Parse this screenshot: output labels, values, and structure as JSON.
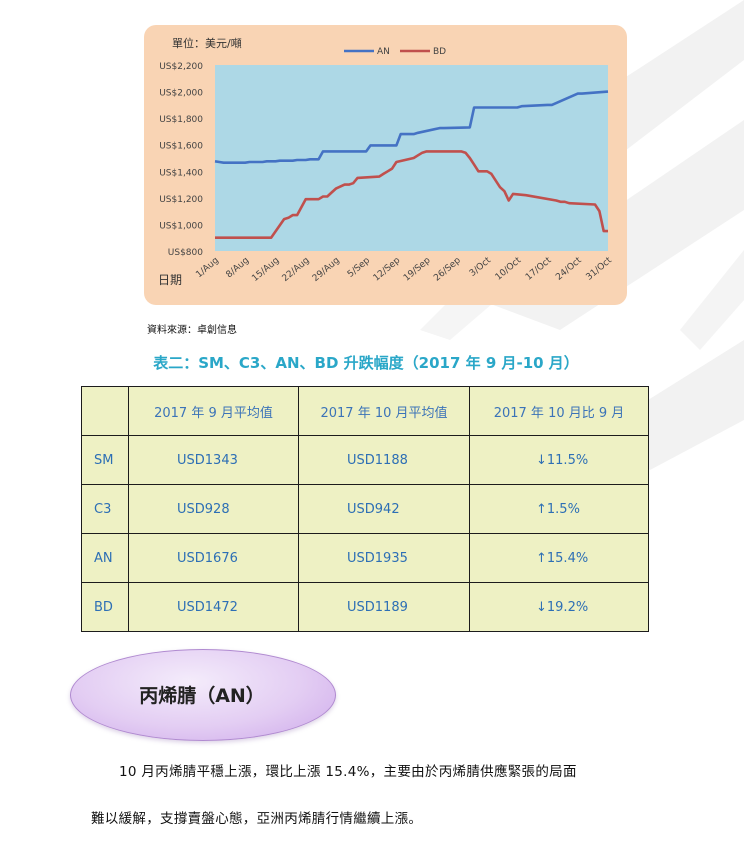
{
  "chart_data": {
    "type": "line",
    "unit_label": "單位：美元/噸",
    "xlabel": "日期",
    "x_ticks": [
      "1/Aug",
      "8/Aug",
      "15/Aug",
      "22/Aug",
      "29/Aug",
      "5/Sep",
      "12/Sep",
      "19/Sep",
      "26/Sep",
      "3/Oct",
      "10/Oct",
      "17/Oct",
      "24/Oct",
      "31/Oct"
    ],
    "y_ticks": [
      "US$800",
      "US$1,000",
      "US$1,200",
      "US$1,400",
      "US$1,600",
      "US$1,800",
      "US$2,000",
      "US$2,200"
    ],
    "ylim": [
      800,
      2200
    ],
    "xlim": [
      0,
      91
    ],
    "legend_position": "top",
    "grid": false,
    "series": [
      {
        "name": "AN",
        "color": "#4472c4",
        "x": [
          0,
          1,
          2,
          7,
          8,
          11,
          12,
          14,
          15,
          18,
          19,
          21,
          22,
          24,
          25,
          26,
          27,
          35,
          36,
          42,
          43,
          45,
          46,
          47,
          52,
          53,
          59,
          60,
          70,
          71,
          77,
          78,
          84,
          85,
          91
        ],
        "y": [
          1475,
          1470,
          1465,
          1465,
          1470,
          1470,
          1475,
          1475,
          1480,
          1480,
          1485,
          1485,
          1490,
          1490,
          1550,
          1550,
          1550,
          1550,
          1595,
          1595,
          1680,
          1680,
          1680,
          1690,
          1725,
          1725,
          1730,
          1880,
          1880,
          1890,
          1900,
          1900,
          1985,
          1985,
          2000
        ]
      },
      {
        "name": "BD",
        "color": "#c0504d",
        "x": [
          0,
          13,
          16,
          17,
          18,
          19,
          21,
          22,
          23,
          24,
          25,
          26,
          27,
          28,
          30,
          31,
          32,
          33,
          38,
          39,
          40,
          41,
          42,
          46,
          47,
          48,
          49,
          50,
          57,
          58,
          59,
          60,
          61,
          63,
          64,
          65,
          66,
          67,
          68,
          69,
          72,
          79,
          80,
          81,
          82,
          88,
          89,
          90,
          91
        ],
        "y": [
          900,
          900,
          1040,
          1050,
          1070,
          1070,
          1190,
          1190,
          1190,
          1190,
          1210,
          1210,
          1240,
          1270,
          1300,
          1300,
          1310,
          1350,
          1360,
          1380,
          1400,
          1420,
          1470,
          1500,
          1520,
          1540,
          1550,
          1550,
          1550,
          1540,
          1500,
          1450,
          1400,
          1400,
          1380,
          1330,
          1280,
          1250,
          1180,
          1230,
          1220,
          1180,
          1170,
          1170,
          1160,
          1150,
          1100,
          950,
          950
        ]
      }
    ]
  },
  "source_note": "資料來源：卓創信息",
  "table_title": "表二：SM、C3、AN、BD 升跌幅度（2017 年 9 月-10 月）",
  "table": {
    "headers": [
      "",
      "2017 年 9 月平均值",
      "2017 年 10 月平均值",
      "2017 年 10 月比 9 月"
    ],
    "rows": [
      [
        "SM",
        "USD1343",
        "USD1188",
        "↓11.5%"
      ],
      [
        "C3",
        "USD928",
        "USD942",
        "↑1.5%"
      ],
      [
        "AN",
        "USD1676",
        "USD1935",
        "↑15.4%"
      ],
      [
        "BD",
        "USD1472",
        "USD1189",
        "↓19.2%"
      ]
    ]
  },
  "section_heading": "丙烯腈（AN）",
  "paragraph": {
    "line1": "10 月丙烯腈平穩上漲，環比上漲 15.4%，主要由於丙烯腈供應緊張的局面",
    "line2": "難以緩解，支撐賣盤心態，亞洲丙烯腈行情繼續上漲。"
  }
}
